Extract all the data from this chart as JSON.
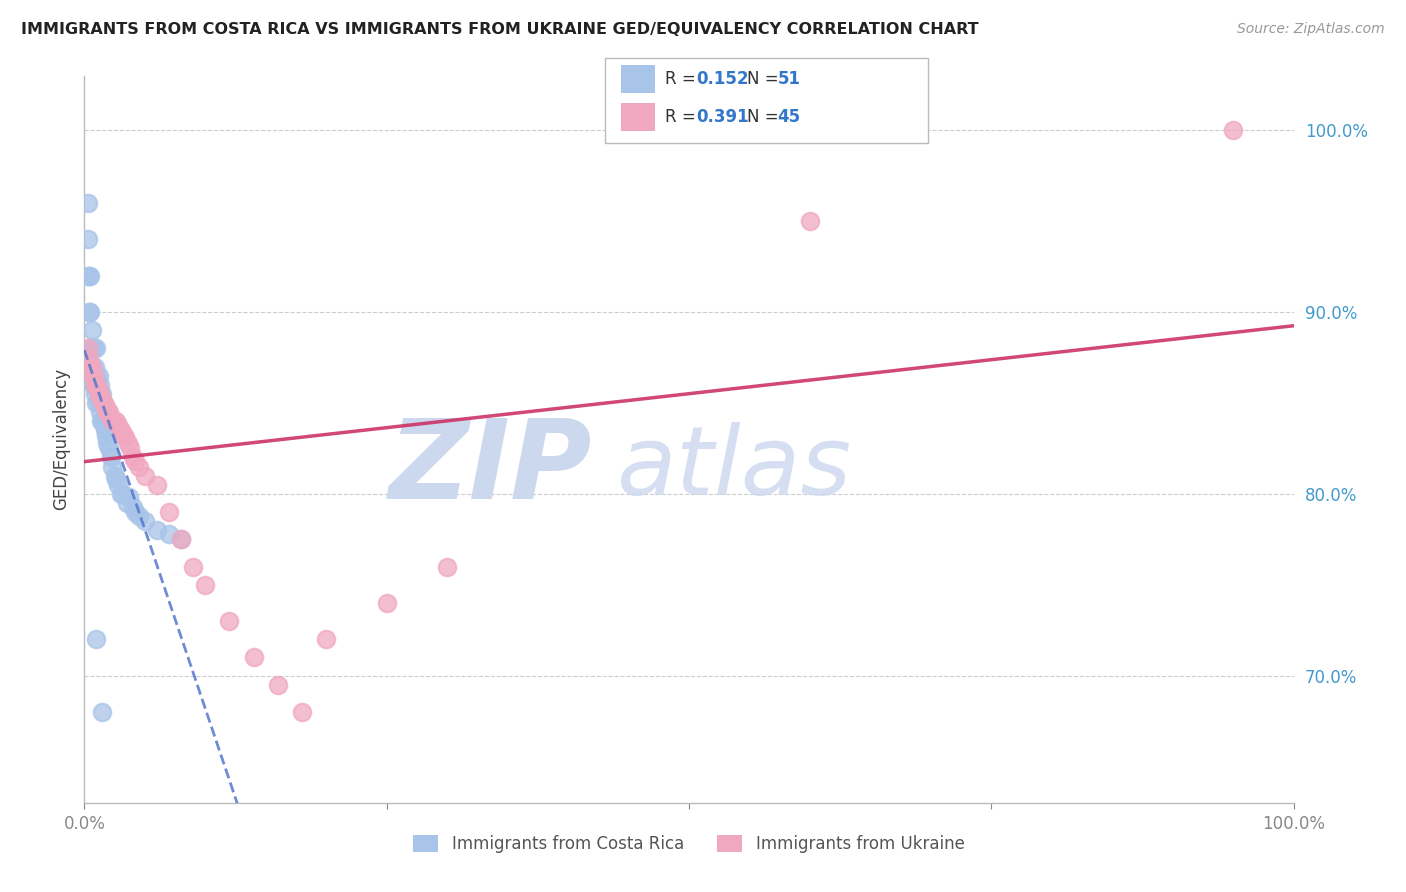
{
  "title": "IMMIGRANTS FROM COSTA RICA VS IMMIGRANTS FROM UKRAINE GED/EQUIVALENCY CORRELATION CHART",
  "source": "Source: ZipAtlas.com",
  "ylabel": "GED/Equivalency",
  "r_costa_rica": 0.152,
  "n_costa_rica": 51,
  "r_ukraine": 0.391,
  "n_ukraine": 45,
  "color_costa_rica": "#a8c4e8",
  "color_ukraine": "#f0a8c0",
  "line_color_costa_rica": "#5577cc",
  "line_color_ukraine": "#cc3366",
  "background_color": "#ffffff",
  "watermark_zip_color": "#ccd8ee",
  "watermark_atlas_color": "#ccd8ee",
  "grid_color": "#cccccc",
  "y_tick_vals": [
    0.7,
    0.8,
    0.9,
    1.0
  ],
  "y_tick_labels": [
    "70.0%",
    "80.0%",
    "90.0%",
    "100.0%"
  ],
  "xlim": [
    0.0,
    1.0
  ],
  "ylim": [
    0.63,
    1.03
  ],
  "costa_rica_x": [
    0.003,
    0.003,
    0.003,
    0.004,
    0.004,
    0.005,
    0.005,
    0.005,
    0.006,
    0.006,
    0.007,
    0.007,
    0.008,
    0.008,
    0.009,
    0.009,
    0.01,
    0.01,
    0.01,
    0.011,
    0.012,
    0.012,
    0.013,
    0.013,
    0.014,
    0.015,
    0.015,
    0.016,
    0.017,
    0.018,
    0.019,
    0.02,
    0.02,
    0.022,
    0.023,
    0.025,
    0.026,
    0.028,
    0.03,
    0.032,
    0.035,
    0.037,
    0.04,
    0.042,
    0.045,
    0.05,
    0.06,
    0.07,
    0.08,
    0.01,
    0.015
  ],
  "costa_rica_y": [
    0.92,
    0.94,
    0.96,
    0.9,
    0.92,
    0.88,
    0.9,
    0.92,
    0.87,
    0.89,
    0.86,
    0.88,
    0.86,
    0.88,
    0.855,
    0.87,
    0.85,
    0.865,
    0.88,
    0.855,
    0.85,
    0.865,
    0.845,
    0.86,
    0.84,
    0.84,
    0.855,
    0.838,
    0.835,
    0.832,
    0.828,
    0.825,
    0.84,
    0.82,
    0.815,
    0.81,
    0.808,
    0.805,
    0.8,
    0.8,
    0.795,
    0.798,
    0.793,
    0.79,
    0.788,
    0.785,
    0.78,
    0.778,
    0.775,
    0.72,
    0.68
  ],
  "ukraine_x": [
    0.003,
    0.004,
    0.005,
    0.006,
    0.007,
    0.008,
    0.009,
    0.01,
    0.011,
    0.012,
    0.013,
    0.014,
    0.015,
    0.016,
    0.017,
    0.018,
    0.019,
    0.02,
    0.022,
    0.024,
    0.026,
    0.028,
    0.03,
    0.032,
    0.034,
    0.036,
    0.038,
    0.04,
    0.042,
    0.045,
    0.05,
    0.06,
    0.07,
    0.08,
    0.09,
    0.1,
    0.12,
    0.14,
    0.16,
    0.18,
    0.2,
    0.25,
    0.3,
    0.6,
    0.95
  ],
  "ukraine_y": [
    0.88,
    0.875,
    0.87,
    0.87,
    0.865,
    0.865,
    0.86,
    0.86,
    0.858,
    0.855,
    0.855,
    0.852,
    0.852,
    0.85,
    0.848,
    0.848,
    0.845,
    0.845,
    0.842,
    0.84,
    0.84,
    0.838,
    0.835,
    0.833,
    0.831,
    0.828,
    0.825,
    0.82,
    0.818,
    0.815,
    0.81,
    0.805,
    0.79,
    0.775,
    0.76,
    0.75,
    0.73,
    0.71,
    0.695,
    0.68,
    0.72,
    0.74,
    0.76,
    0.95,
    1.0
  ]
}
